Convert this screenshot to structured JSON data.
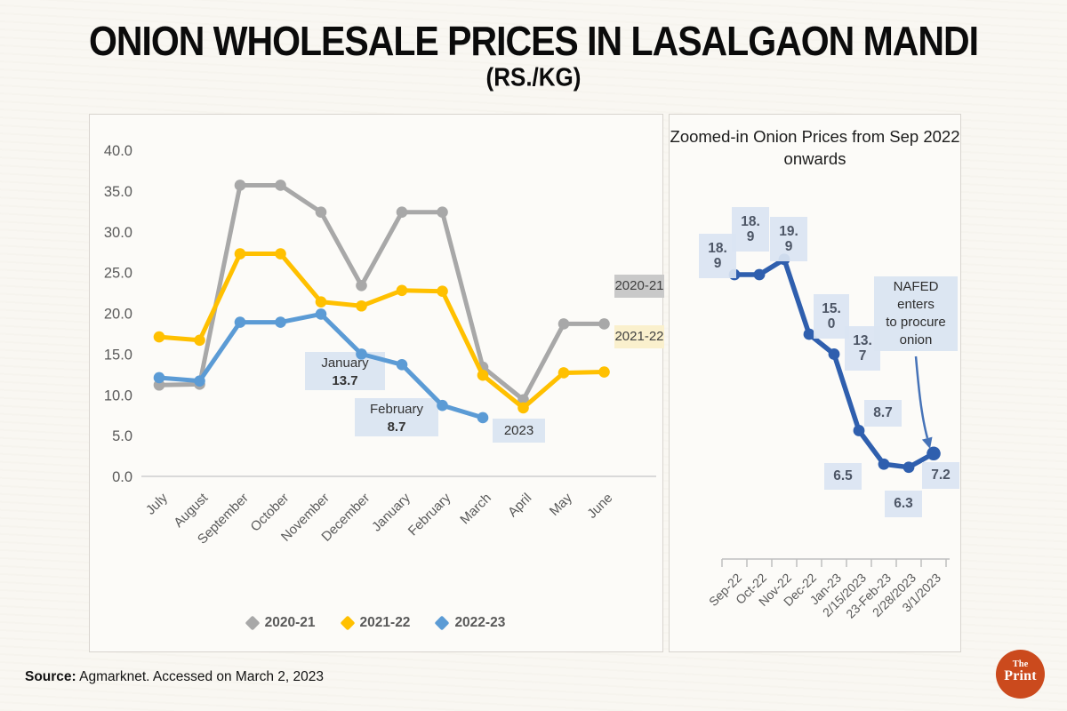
{
  "header": {
    "title": "ONION WHOLESALE PRICES IN LASALGAON MANDI",
    "subtitle": "(RS./KG)"
  },
  "footer": {
    "source_label": "Source:",
    "source_text": "Agmarknet. Accessed on March 2, 2023",
    "logo_top": "The",
    "logo_bottom": "Print"
  },
  "colors": {
    "series_2020": "#a8a8a8",
    "series_2021": "#ffc000",
    "series_2022": "#5b9bd5",
    "zoom_line": "#2f5fae",
    "label_box": "#dce6f2",
    "tag_2020_bg": "#c9c9c9",
    "tag_2021_bg": "#faf0cd",
    "logo_bg": "#cb4a1d"
  },
  "chart_data": [
    {
      "type": "line",
      "panel": "left",
      "title": "",
      "categories": [
        "July",
        "August",
        "September",
        "October",
        "November",
        "December",
        "January",
        "February",
        "March",
        "April",
        "May",
        "June"
      ],
      "ylim": [
        0,
        40
      ],
      "y_tick_labels": [
        "40.0",
        "35.0",
        "30.0",
        "25.0",
        "20.0",
        "15.0",
        "10.0",
        "5.0",
        "0.0"
      ],
      "grid": false,
      "legend_position": "bottom",
      "series": [
        {
          "name": "2020-21",
          "color": "#a8a8a8",
          "values": [
            11.2,
            11.3,
            35.7,
            35.7,
            32.4,
            23.4,
            32.4,
            32.4,
            13.4,
            9.4,
            18.7,
            18.7
          ]
        },
        {
          "name": "2021-22",
          "color": "#ffc000",
          "values": [
            17.1,
            16.7,
            27.3,
            27.3,
            21.4,
            20.9,
            22.8,
            22.7,
            12.4,
            8.4,
            12.7,
            12.8
          ]
        },
        {
          "name": "2022-23",
          "color": "#5b9bd5",
          "values": [
            12.1,
            11.7,
            18.9,
            18.9,
            19.9,
            15.0,
            13.7,
            8.7,
            7.2,
            null,
            null,
            null
          ]
        }
      ],
      "legend": [
        "2020-21",
        "2021-22",
        "2022-23"
      ],
      "annotations": {
        "january_label": "January",
        "january_value": "13.7",
        "february_label": "February",
        "february_value": "8.7",
        "year_label": "2023",
        "tag_2020": "2020-21",
        "tag_2021": "2021-22"
      }
    },
    {
      "type": "line",
      "panel": "right",
      "title": "Zoomed-in Onion Prices from Sep 2022 onwards",
      "categories": [
        "Sep-22",
        "Oct-22",
        "Nov-22",
        "Dec-22",
        "Jan-23",
        "2/15/2023",
        "23-Feb-23",
        "2/28/2023",
        "3/1/2023"
      ],
      "values": [
        18.9,
        18.9,
        19.9,
        15.0,
        13.7,
        8.7,
        6.5,
        6.3,
        7.2
      ],
      "data_labels": [
        "18.9",
        "18.9",
        "19.9",
        "15.0",
        "13.7",
        "8.7",
        "6.5",
        "6.3",
        "7.2"
      ],
      "line_color": "#2f5fae",
      "grid": false,
      "annotation_lines": [
        "NAFED",
        "enters",
        "to procure",
        "onion"
      ]
    }
  ]
}
